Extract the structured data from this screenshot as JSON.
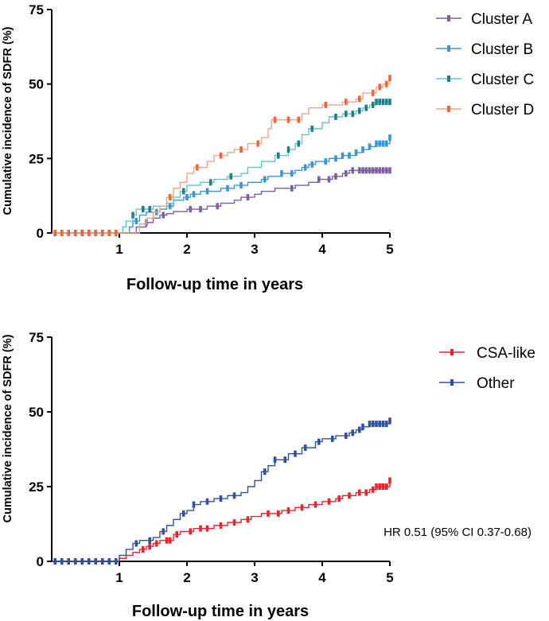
{
  "chart_data": [
    {
      "type": "line",
      "subtype": "step-cumulative-incidence",
      "title": "",
      "xlabel": "Follow-up time in years",
      "ylabel": "Cumulative incidence of SDFR (%)",
      "xlim": [
        0,
        5
      ],
      "ylim": [
        0,
        75
      ],
      "x_ticks": [
        1,
        2,
        3,
        4,
        5
      ],
      "y_ticks": [
        0,
        25,
        50,
        75
      ],
      "legend_position": "top-right",
      "series": [
        {
          "name": "Cluster A",
          "color": "#7b5fa0",
          "points": [
            [
              0,
              0
            ],
            [
              1.25,
              0
            ],
            [
              1.25,
              2
            ],
            [
              1.4,
              3.5
            ],
            [
              1.5,
              5
            ],
            [
              1.6,
              6
            ],
            [
              1.7,
              6.5
            ],
            [
              1.8,
              7.2
            ],
            [
              2.0,
              8
            ],
            [
              2.3,
              9
            ],
            [
              2.5,
              10
            ],
            [
              2.7,
              11
            ],
            [
              2.8,
              12
            ],
            [
              3.0,
              13
            ],
            [
              3.1,
              14
            ],
            [
              3.3,
              15
            ],
            [
              3.6,
              16
            ],
            [
              3.8,
              17
            ],
            [
              3.95,
              18
            ],
            [
              4.15,
              19
            ],
            [
              4.3,
              20
            ],
            [
              4.4,
              21
            ],
            [
              5.0,
              21
            ]
          ],
          "censor_x": [
            0.05,
            0.15,
            0.25,
            0.35,
            0.45,
            0.55,
            0.65,
            0.75,
            0.85,
            0.95,
            1.4,
            1.65,
            2.05,
            2.2,
            2.45,
            2.9,
            3.55,
            3.95,
            4.1,
            4.2,
            4.35,
            4.45,
            4.55,
            4.6,
            4.65,
            4.7,
            4.75,
            4.8,
            4.85,
            4.9,
            4.95,
            5.0
          ]
        },
        {
          "name": "Cluster B",
          "color": "#3a96d2",
          "points": [
            [
              0,
              0
            ],
            [
              1.15,
              0
            ],
            [
              1.15,
              2
            ],
            [
              1.2,
              4
            ],
            [
              1.3,
              6
            ],
            [
              1.4,
              7
            ],
            [
              1.6,
              8
            ],
            [
              1.7,
              9
            ],
            [
              1.8,
              11
            ],
            [
              1.95,
              12
            ],
            [
              2.05,
              13
            ],
            [
              2.2,
              14
            ],
            [
              2.5,
              15
            ],
            [
              2.7,
              16
            ],
            [
              2.9,
              17
            ],
            [
              3.1,
              18
            ],
            [
              3.2,
              19
            ],
            [
              3.4,
              20
            ],
            [
              3.6,
              21
            ],
            [
              3.7,
              22
            ],
            [
              3.8,
              23
            ],
            [
              3.9,
              24
            ],
            [
              4.1,
              25
            ],
            [
              4.3,
              26
            ],
            [
              4.5,
              27
            ],
            [
              4.6,
              28
            ],
            [
              4.7,
              29
            ],
            [
              4.8,
              30
            ],
            [
              5.0,
              32
            ]
          ],
          "censor_x": [
            0.05,
            0.15,
            0.25,
            0.35,
            0.45,
            0.55,
            0.65,
            0.75,
            0.85,
            0.95,
            1.25,
            1.55,
            1.75,
            2.0,
            2.1,
            2.3,
            2.6,
            2.8,
            3.15,
            3.4,
            3.55,
            3.75,
            3.85,
            4.05,
            4.2,
            4.3,
            4.4,
            4.5,
            4.6,
            4.7,
            4.8,
            4.85,
            4.9,
            4.95,
            5.0
          ]
        },
        {
          "name": "Cluster C",
          "color": "#1f7f8a",
          "line_color": "#5bc8c8",
          "points": [
            [
              0,
              0
            ],
            [
              1.05,
              0
            ],
            [
              1.05,
              2
            ],
            [
              1.1,
              4
            ],
            [
              1.2,
              6
            ],
            [
              1.25,
              8
            ],
            [
              1.5,
              8
            ],
            [
              1.5,
              9
            ],
            [
              1.7,
              10
            ],
            [
              1.8,
              12
            ],
            [
              1.9,
              14
            ],
            [
              2.0,
              16
            ],
            [
              2.2,
              17
            ],
            [
              2.4,
              18
            ],
            [
              2.6,
              19
            ],
            [
              2.8,
              20
            ],
            [
              2.9,
              22
            ],
            [
              3.1,
              24
            ],
            [
              3.3,
              26
            ],
            [
              3.5,
              28
            ],
            [
              3.6,
              30
            ],
            [
              3.7,
              33
            ],
            [
              3.8,
              35
            ],
            [
              4.0,
              37
            ],
            [
              4.1,
              39
            ],
            [
              4.3,
              40
            ],
            [
              4.5,
              41
            ],
            [
              4.6,
              42
            ],
            [
              4.7,
              43
            ],
            [
              4.8,
              44
            ],
            [
              5.0,
              44
            ]
          ],
          "censor_x": [
            0.05,
            0.15,
            0.25,
            0.35,
            0.45,
            0.55,
            0.65,
            0.75,
            0.85,
            0.95,
            1.2,
            1.35,
            1.45,
            1.95,
            2.35,
            2.65,
            3.35,
            3.5,
            3.65,
            3.85,
            4.2,
            4.35,
            4.45,
            4.55,
            4.65,
            4.75,
            4.8,
            4.85,
            4.9,
            4.95,
            5.0
          ]
        },
        {
          "name": "Cluster D",
          "color": "#f0643c",
          "line_color": "#f4a386",
          "points": [
            [
              0,
              0
            ],
            [
              1.3,
              0
            ],
            [
              1.3,
              3
            ],
            [
              1.4,
              5
            ],
            [
              1.5,
              7
            ],
            [
              1.6,
              9
            ],
            [
              1.7,
              12
            ],
            [
              1.8,
              15
            ],
            [
              1.9,
              17
            ],
            [
              2.0,
              20
            ],
            [
              2.1,
              22
            ],
            [
              2.3,
              24
            ],
            [
              2.4,
              26
            ],
            [
              2.6,
              27
            ],
            [
              2.7,
              28
            ],
            [
              2.9,
              30
            ],
            [
              3.1,
              32
            ],
            [
              3.2,
              35
            ],
            [
              3.25,
              38
            ],
            [
              3.6,
              38
            ],
            [
              3.7,
              40
            ],
            [
              3.8,
              42
            ],
            [
              4.0,
              43
            ],
            [
              4.3,
              44
            ],
            [
              4.5,
              45
            ],
            [
              4.6,
              47
            ],
            [
              4.8,
              49
            ],
            [
              4.9,
              50
            ],
            [
              5.0,
              52
            ]
          ],
          "censor_x": [
            0.05,
            0.15,
            0.25,
            0.35,
            0.45,
            0.55,
            0.65,
            0.75,
            0.85,
            0.95,
            1.75,
            2.15,
            2.5,
            2.8,
            3.05,
            3.3,
            3.5,
            3.65,
            4.05,
            4.35,
            4.55,
            4.75,
            4.85,
            4.95,
            5.0
          ]
        }
      ]
    },
    {
      "type": "line",
      "subtype": "step-cumulative-incidence",
      "title": "",
      "xlabel": "Follow-up time in years",
      "ylabel": "Cumulative incidence of SDFR (%)",
      "xlim": [
        0,
        5
      ],
      "ylim": [
        0,
        75
      ],
      "x_ticks": [
        1,
        2,
        3,
        4,
        5
      ],
      "y_ticks": [
        0,
        25,
        50,
        75
      ],
      "legend_position": "top-right",
      "annotation": "HR 0.51 (95% CI 0.37-0.68)",
      "series": [
        {
          "name": "CSA-like",
          "color": "#e8232a",
          "points": [
            [
              0,
              0
            ],
            [
              1.0,
              0
            ],
            [
              1.0,
              1
            ],
            [
              1.1,
              2
            ],
            [
              1.2,
              3
            ],
            [
              1.3,
              4
            ],
            [
              1.4,
              5
            ],
            [
              1.5,
              6
            ],
            [
              1.6,
              7
            ],
            [
              1.8,
              9
            ],
            [
              1.9,
              10
            ],
            [
              2.1,
              11
            ],
            [
              2.4,
              12
            ],
            [
              2.6,
              13
            ],
            [
              2.8,
              14
            ],
            [
              2.95,
              15
            ],
            [
              3.1,
              16
            ],
            [
              3.4,
              17
            ],
            [
              3.6,
              18
            ],
            [
              3.8,
              19
            ],
            [
              4.0,
              20
            ],
            [
              4.2,
              21
            ],
            [
              4.3,
              22
            ],
            [
              4.5,
              23
            ],
            [
              4.7,
              24
            ],
            [
              4.8,
              25
            ],
            [
              5.0,
              27
            ]
          ],
          "censor_x": [
            0.05,
            0.15,
            0.25,
            0.35,
            0.45,
            0.55,
            0.65,
            0.75,
            0.85,
            0.95,
            1.35,
            1.45,
            1.55,
            1.7,
            1.75,
            1.85,
            2.05,
            2.2,
            2.3,
            2.5,
            2.7,
            2.9,
            3.2,
            3.35,
            3.5,
            3.7,
            3.9,
            4.1,
            4.25,
            4.4,
            4.55,
            4.65,
            4.75,
            4.8,
            4.85,
            4.9,
            4.95,
            5.0
          ]
        },
        {
          "name": "Other",
          "color": "#3050a0",
          "points": [
            [
              0,
              0
            ],
            [
              1.0,
              0
            ],
            [
              1.0,
              2
            ],
            [
              1.1,
              4
            ],
            [
              1.2,
              6
            ],
            [
              1.3,
              7
            ],
            [
              1.5,
              8
            ],
            [
              1.6,
              10
            ],
            [
              1.7,
              12
            ],
            [
              1.8,
              14
            ],
            [
              1.9,
              16
            ],
            [
              2.0,
              17
            ],
            [
              2.1,
              19
            ],
            [
              2.2,
              20
            ],
            [
              2.4,
              21
            ],
            [
              2.6,
              22
            ],
            [
              2.8,
              23
            ],
            [
              2.9,
              25
            ],
            [
              3.0,
              27
            ],
            [
              3.1,
              30
            ],
            [
              3.2,
              32
            ],
            [
              3.3,
              34
            ],
            [
              3.5,
              36
            ],
            [
              3.7,
              38
            ],
            [
              3.9,
              40
            ],
            [
              4.0,
              41
            ],
            [
              4.2,
              42
            ],
            [
              4.4,
              43
            ],
            [
              4.5,
              44
            ],
            [
              4.6,
              45
            ],
            [
              4.7,
              46
            ],
            [
              5.0,
              47
            ]
          ],
          "censor_x": [
            0.05,
            0.15,
            0.25,
            0.35,
            0.45,
            0.55,
            0.65,
            0.75,
            0.85,
            0.95,
            1.25,
            1.45,
            1.65,
            1.95,
            2.1,
            2.3,
            2.5,
            2.7,
            3.15,
            3.3,
            3.45,
            3.6,
            3.75,
            3.95,
            4.15,
            4.35,
            4.45,
            4.55,
            4.6,
            4.7,
            4.75,
            4.8,
            4.85,
            4.9,
            4.95,
            5.0
          ]
        }
      ]
    }
  ]
}
